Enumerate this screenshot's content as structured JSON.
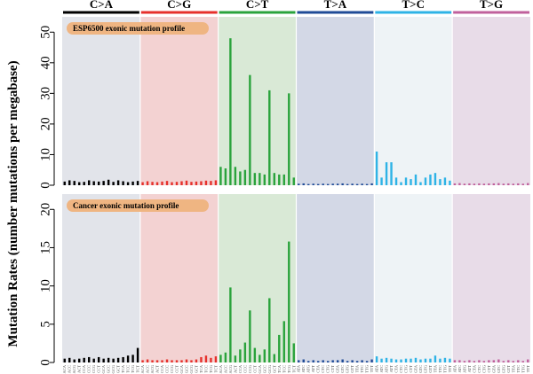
{
  "chart_data": {
    "type": "bar",
    "ylabel": "Mutation Rates (number mutations per megabase)",
    "mutation_types": [
      {
        "name": "C>A",
        "color": "#000000",
        "bg": "#e2e4ea",
        "bar_color": "#000000"
      },
      {
        "name": "C>G",
        "color": "#e6302b",
        "bg": "#f3d2d2",
        "bar_color": "#e6302b"
      },
      {
        "name": "C>T",
        "color": "#2aa33c",
        "bg": "#d9e9d6",
        "bar_color": "#2aa33c"
      },
      {
        "name": "T>A",
        "color": "#1f4b97",
        "bg": "#d3d8e6",
        "bar_color": "#1f4b97"
      },
      {
        "name": "T>C",
        "color": "#2eb3e6",
        "bg": "#eef3f6",
        "bar_color": "#2eb3e6"
      },
      {
        "name": "T>G",
        "color": "#c0609c",
        "bg": "#e8dce8",
        "bar_color": "#c0609c"
      }
    ],
    "contexts": {
      "C": [
        "ACA",
        "ACC",
        "ACG",
        "ACT",
        "CCA",
        "CCC",
        "CCG",
        "CCT",
        "GCA",
        "GCC",
        "GCG",
        "GCT",
        "TCA",
        "TCC",
        "TCG",
        "TCT"
      ],
      "T": [
        "ATA",
        "ATC",
        "ATG",
        "ATT",
        "CTA",
        "CTC",
        "CTG",
        "CTT",
        "GTA",
        "GTC",
        "GTG",
        "GTT",
        "TTA",
        "TTC",
        "TTG",
        "TTT"
      ]
    },
    "panels": [
      {
        "label": "ESP6500 exonic mutation profile",
        "ylim": [
          0,
          55
        ],
        "yticks": [
          0,
          10,
          20,
          30,
          40,
          50
        ],
        "series": [
          [
            1.2,
            1.6,
            1.4,
            1.0,
            1.1,
            1.6,
            1.3,
            1.2,
            1.4,
            1.8,
            1.1,
            1.6,
            1.3,
            1.0,
            1.2,
            1.4
          ],
          [
            1.0,
            1.3,
            1.1,
            1.0,
            1.2,
            1.4,
            1.0,
            1.1,
            1.3,
            1.5,
            1.1,
            1.2,
            1.3,
            1.5,
            1.4,
            1.6
          ],
          [
            6.0,
            5.5,
            48.0,
            6.0,
            4.5,
            5.0,
            36.0,
            4.0,
            4.0,
            3.5,
            31.0,
            4.0,
            3.5,
            3.5,
            30.0,
            2.5
          ],
          [
            0.5,
            0.6,
            0.4,
            0.5,
            0.4,
            0.5,
            0.4,
            0.5,
            0.5,
            0.6,
            0.4,
            0.5,
            0.4,
            0.5,
            0.4,
            0.6
          ],
          [
            11.0,
            2.5,
            7.5,
            7.5,
            2.5,
            1.0,
            2.5,
            2.0,
            3.5,
            1.0,
            2.5,
            3.5,
            4.0,
            2.0,
            2.5,
            1.5
          ],
          [
            0.6,
            0.7,
            0.5,
            0.6,
            0.5,
            0.6,
            0.5,
            0.6,
            0.6,
            0.7,
            0.5,
            0.6,
            0.5,
            0.6,
            0.5,
            0.7
          ]
        ]
      },
      {
        "label": "Cancer exonic mutation profile",
        "ylim": [
          0,
          22
        ],
        "yticks": [
          0,
          5,
          10,
          15,
          20
        ],
        "series": [
          [
            0.5,
            0.6,
            0.4,
            0.5,
            0.6,
            0.7,
            0.5,
            0.7,
            0.5,
            0.6,
            0.5,
            0.6,
            0.7,
            0.9,
            1.0,
            1.9
          ],
          [
            0.3,
            0.4,
            0.3,
            0.3,
            0.3,
            0.4,
            0.3,
            0.3,
            0.3,
            0.4,
            0.3,
            0.4,
            0.7,
            0.9,
            0.6,
            0.8
          ],
          [
            1.0,
            1.3,
            9.8,
            0.9,
            1.7,
            2.6,
            6.8,
            1.9,
            1.0,
            1.7,
            8.4,
            1.1,
            3.6,
            5.4,
            15.8,
            2.5
          ],
          [
            0.3,
            0.4,
            0.2,
            0.3,
            0.2,
            0.3,
            0.2,
            0.3,
            0.3,
            0.4,
            0.2,
            0.3,
            0.2,
            0.3,
            0.2,
            0.4
          ],
          [
            0.8,
            0.5,
            0.6,
            0.5,
            0.4,
            0.4,
            0.5,
            0.5,
            0.6,
            0.4,
            0.5,
            0.5,
            0.9,
            0.5,
            0.6,
            0.5
          ],
          [
            0.3,
            0.3,
            0.2,
            0.3,
            0.2,
            0.3,
            0.2,
            0.3,
            0.3,
            0.4,
            0.2,
            0.3,
            0.2,
            0.3,
            0.2,
            0.4
          ]
        ]
      }
    ]
  }
}
